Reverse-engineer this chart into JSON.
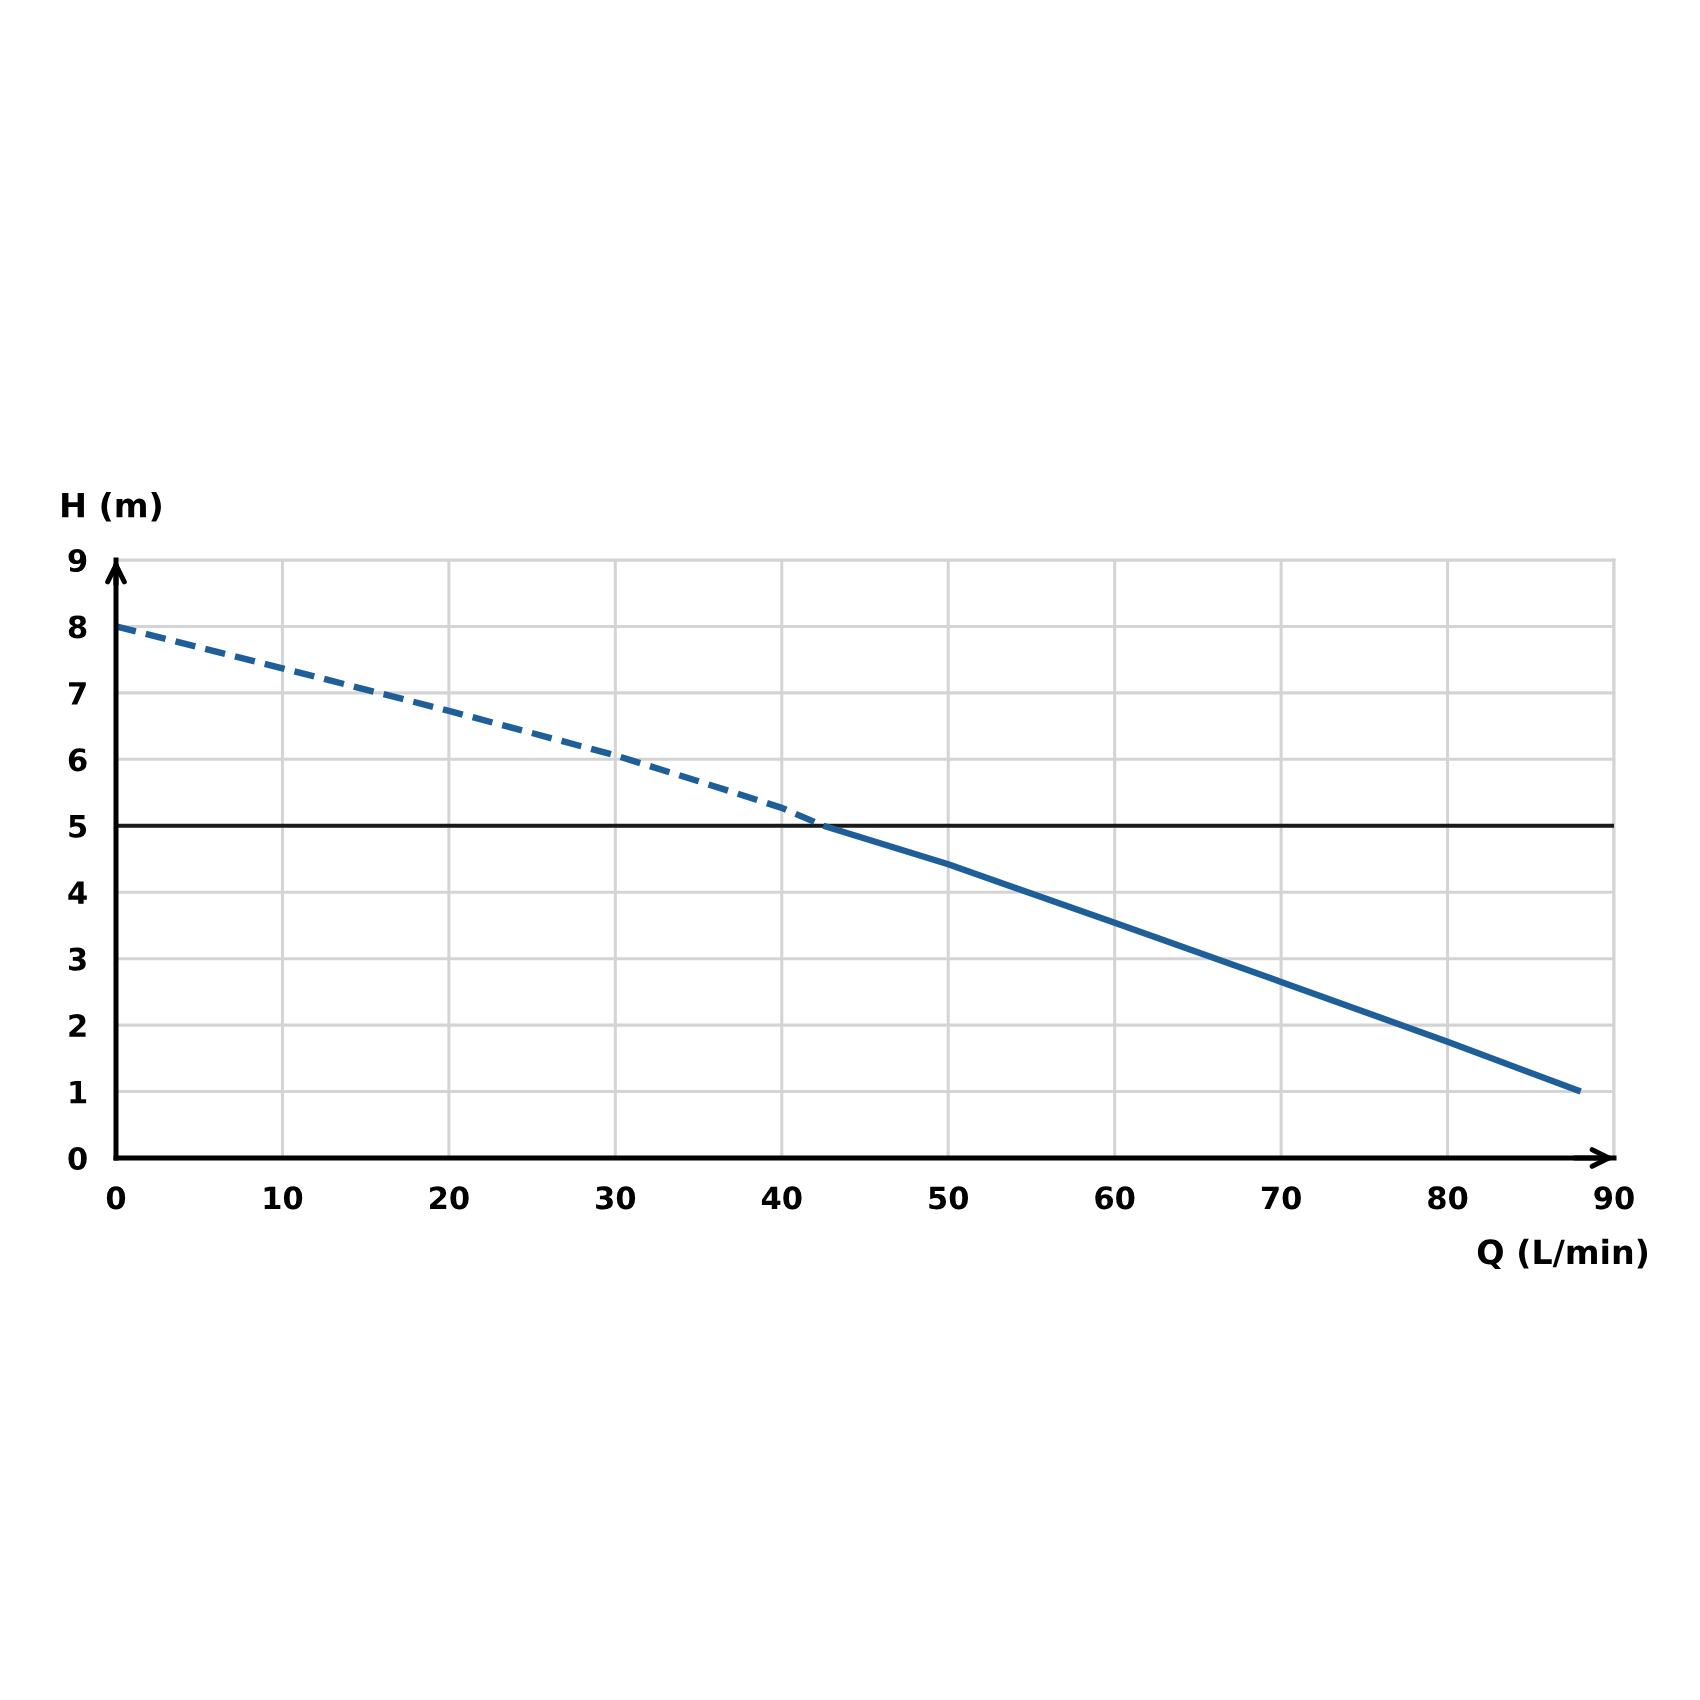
{
  "chart_data": {
    "type": "line",
    "xlabel": "Q (L/min)",
    "ylabel": "H (m)",
    "series": [
      {
        "color": "#1f5f99",
        "line_style": "dashed",
        "x": [
          0,
          10,
          20,
          30,
          35,
          40,
          42.5
        ],
        "values": [
          8,
          7.37,
          6.73,
          6.06,
          5.67,
          5.27,
          5
        ]
      },
      {
        "color": "#1f5f99",
        "line_style": "solid",
        "x": [
          42.5,
          50,
          60,
          70,
          80,
          88
        ],
        "values": [
          5,
          4.42,
          3.54,
          2.65,
          1.75,
          1
        ]
      }
    ],
    "xlim": [
      0,
      90
    ],
    "ylim": [
      0,
      9
    ],
    "xticks": [
      0,
      10,
      20,
      30,
      40,
      50,
      60,
      70,
      80,
      90
    ],
    "yticks": [
      0,
      1,
      2,
      3,
      4,
      5,
      6,
      7,
      8,
      9
    ],
    "grid": true,
    "marker": "none",
    "ref_lines": [
      {
        "axis": "y",
        "value": 5,
        "color": "#1a1a1a"
      }
    ]
  }
}
